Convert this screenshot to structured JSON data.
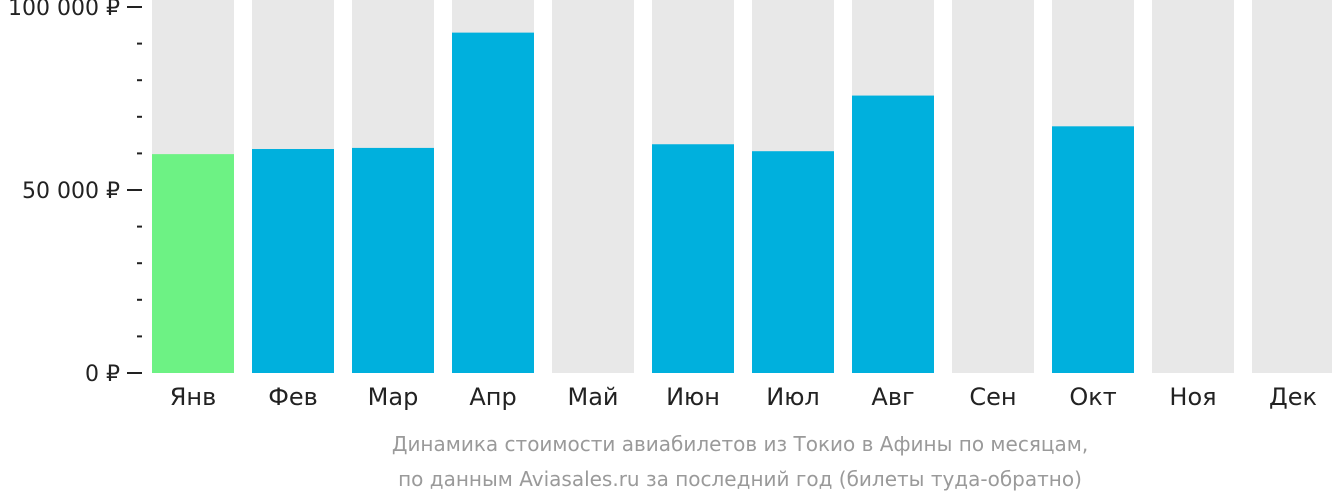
{
  "chart_data": {
    "type": "bar",
    "categories": [
      "Янв",
      "Фев",
      "Мар",
      "Апр",
      "Май",
      "Июн",
      "Июл",
      "Авг",
      "Сен",
      "Окт",
      "Ноя",
      "Дек"
    ],
    "values": [
      59800,
      61200,
      61500,
      93000,
      null,
      62500,
      60600,
      75800,
      null,
      67400,
      null,
      null
    ],
    "highlight_index": 0,
    "ylim": [
      0,
      105000
    ],
    "y_tick_labels": [
      {
        "value": 0,
        "label": "0 ₽"
      },
      {
        "value": 50000,
        "label": "50 000 ₽"
      },
      {
        "value": 100000,
        "label": "100 000 ₽"
      }
    ],
    "y_minor_step": 10000,
    "colors": {
      "bar": "#00b0dd",
      "bar_highlight": "#6df284",
      "background_bar": "#e8e8e8",
      "axis": "#222222"
    },
    "caption": [
      "Динамика стоимости авиабилетов из Токио в Афины по месяцам,",
      "по данным Aviasales.ru за последний год (билеты туда-обратно)"
    ]
  }
}
